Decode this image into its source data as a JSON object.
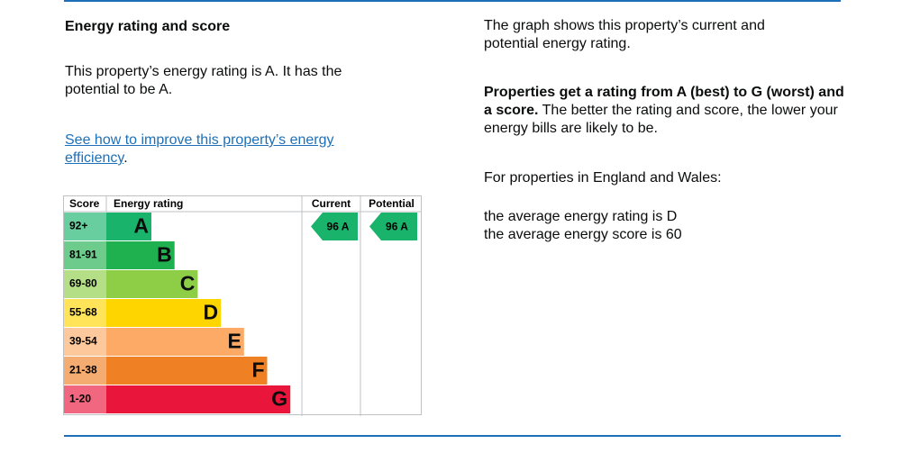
{
  "heading": "Energy rating and score",
  "intro": "This property’s energy rating is A. It has the potential to be A.",
  "link": {
    "text": "See how to improve this property’s energy efficiency",
    "after": "."
  },
  "graph": {
    "headers": {
      "score": "Score",
      "rating": "Energy rating",
      "current": "Current",
      "potential": "Potential"
    },
    "bands": [
      {
        "score": "92+",
        "letter": "A",
        "color": "#19b36b"
      },
      {
        "score": "81-91",
        "letter": "B",
        "color": "#1fb04f"
      },
      {
        "score": "69-80",
        "letter": "C",
        "color": "#8dce46"
      },
      {
        "score": "55-68",
        "letter": "D",
        "color": "#ffd500"
      },
      {
        "score": "39-54",
        "letter": "E",
        "color": "#fcaa65"
      },
      {
        "score": "21-38",
        "letter": "F",
        "color": "#ef8023"
      },
      {
        "score": "1-20",
        "letter": "G",
        "color": "#e9153b"
      }
    ],
    "current": {
      "label": "96 A",
      "band": 0
    },
    "potential": {
      "label": "96 A",
      "band": 0
    }
  },
  "side": {
    "p1": "The graph shows this property’s current and potential energy rating.",
    "p2_bold": "Properties get a rating from A (best) to G (worst) and a score.",
    "p2_rest": " The better the rating and score, the lower your energy bills are likely to be.",
    "p3": "For properties in England and Wales:",
    "p4_line1": "the average energy rating is D",
    "p4_line2": "the average energy score is 60"
  }
}
